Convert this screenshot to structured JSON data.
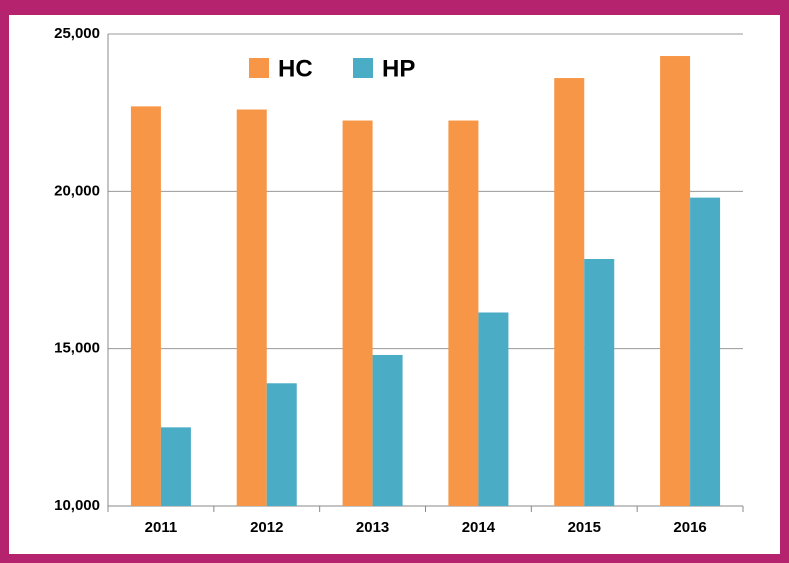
{
  "chart_data": {
    "type": "bar",
    "categories": [
      "2011",
      "2012",
      "2013",
      "2014",
      "2015",
      "2016"
    ],
    "series": [
      {
        "name": "HC",
        "color": "#f79646",
        "values": [
          22700,
          22600,
          22250,
          22250,
          23600,
          24300
        ]
      },
      {
        "name": "HP",
        "color": "#4bacc6",
        "values": [
          12500,
          13900,
          14800,
          16150,
          17850,
          19800
        ]
      }
    ],
    "ylim": [
      10000,
      25000
    ],
    "yticks": [
      {
        "value": 10000,
        "label": "10,000"
      },
      {
        "value": 15000,
        "label": "15,000"
      },
      {
        "value": 20000,
        "label": "20,000"
      },
      {
        "value": 25000,
        "label": "25,000"
      }
    ],
    "grid": true,
    "legend": "top"
  }
}
